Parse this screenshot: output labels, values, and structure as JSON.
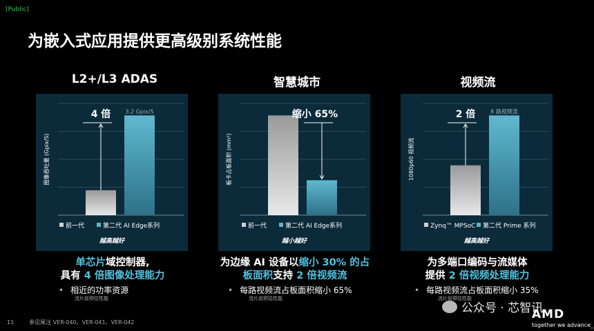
{
  "tag": "[Public]",
  "title": "为嵌入式应用提供更高级别系统性能",
  "columns": [
    {
      "title": "L2+/L3 ADAS",
      "ylabel": "图像吞吐量 (Gpix/S)",
      "callout": "4 倍",
      "value_label": "3.2 Gpix/S",
      "legend": [
        "前一代",
        "第二代 AI Edge系列"
      ],
      "footer": "越高越好",
      "desc_html": "<span class='hl'>单芯片</span>域控制器,<br>具有 <span class='hl'>4 倍图像处理能力</span>",
      "bullet": "相近的功率资源",
      "note": "流片前预估性能"
    },
    {
      "title": "智慧城市",
      "ylabel": "板卡占板面积 (mm²)",
      "callout": "缩小 65%",
      "value_label": "",
      "legend": [
        "前一代",
        "第二代 AI Edge系列"
      ],
      "footer": "越小越好",
      "desc_html": "为边缘 AI 设备以<span class='hl'>缩小 30% 的占<br>板面积</span>支持 <span class='hl'>2 倍视频流</span>",
      "bullet": "每路视频流占板面积缩小 65%",
      "note": "流片前预估性能"
    },
    {
      "title": "视频流",
      "ylabel": "1080p60 视频流",
      "callout": "2 倍",
      "value_label": "8 路视频流",
      "legend": [
        "Zynq™ MPSoC",
        "第二代 Prime 系列"
      ],
      "footer": "越高越好",
      "desc_html": "为多端口编码与流媒体<br>提供 <span class='hl'>2 倍视频处理能力</span>",
      "bullet": "每路视频流占板面积缩小 35%",
      "note": "流片前预估性能"
    }
  ],
  "chart_data": [
    {
      "type": "bar",
      "categories": [
        "前一代",
        "第二代 AI Edge系列"
      ],
      "values": [
        0.8,
        3.2
      ],
      "ylabel": "图像吞吐量 (Gpix/S)",
      "title": "L2+/L3 ADAS"
    },
    {
      "type": "bar",
      "categories": [
        "前一代",
        "第二代 AI Edge系列"
      ],
      "values": [
        100,
        35
      ],
      "ylabel": "板卡占板面积 (mm²)",
      "title": "智慧城市"
    },
    {
      "type": "bar",
      "categories": [
        "Zynq™ MPSoC",
        "第二代 Prime 系列"
      ],
      "values": [
        4,
        8
      ],
      "ylabel": "1080p60 视频流",
      "title": "视频流"
    }
  ],
  "footer": {
    "page": "11",
    "ref": "参见尾注 VER-040、VER-041、VER-042"
  },
  "brand": {
    "logo": "AMD",
    "slogan": "together we advance_"
  },
  "watermark": "公众号 · 芯智讯",
  "colors": {
    "accent": "#4fc3e0",
    "panel": "#0b2a3a",
    "bar_old": "#c8c8c8",
    "bar_new": "#5fb3c9"
  }
}
